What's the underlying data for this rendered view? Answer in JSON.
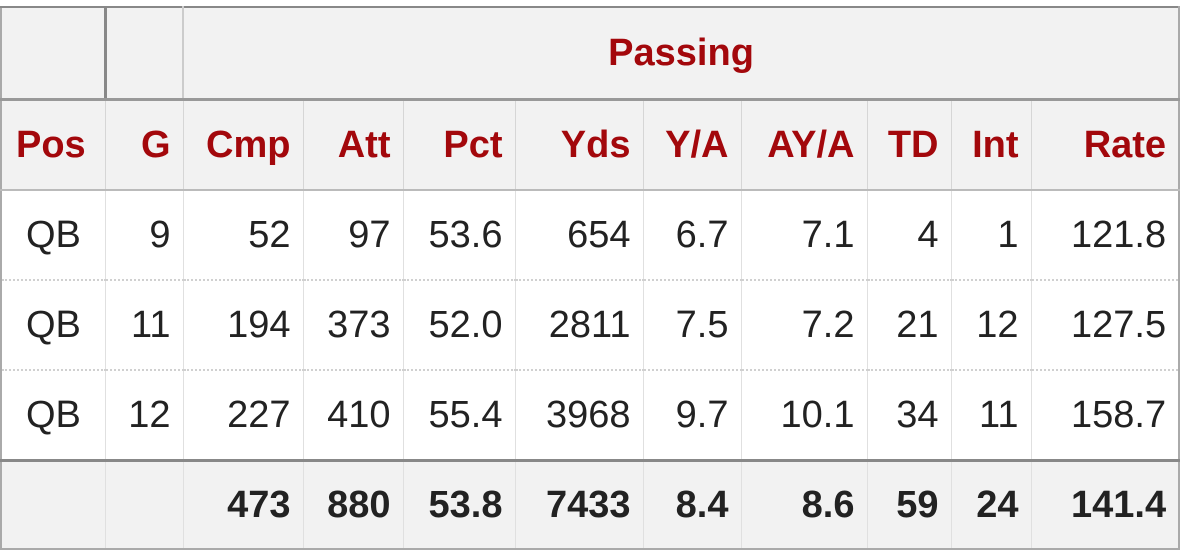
{
  "group_header": "Passing",
  "columns": [
    "Pos",
    "G",
    "Cmp",
    "Att",
    "Pct",
    "Yds",
    "Y/A",
    "AY/A",
    "TD",
    "Int",
    "Rate"
  ],
  "rows": [
    [
      "QB",
      "9",
      "52",
      "97",
      "53.6",
      "654",
      "6.7",
      "7.1",
      "4",
      "1",
      "121.8"
    ],
    [
      "QB",
      "11",
      "194",
      "373",
      "52.0",
      "2811",
      "7.5",
      "7.2",
      "21",
      "12",
      "127.5"
    ],
    [
      "QB",
      "12",
      "227",
      "410",
      "55.4",
      "3968",
      "9.7",
      "10.1",
      "34",
      "11",
      "158.7"
    ]
  ],
  "totals": [
    "",
    "",
    "473",
    "880",
    "53.8",
    "7433",
    "8.4",
    "8.6",
    "59",
    "24",
    "141.4"
  ],
  "colors": {
    "header_text": "#a3080c",
    "header_bg": "#f2f2f2",
    "text": "#222222"
  }
}
